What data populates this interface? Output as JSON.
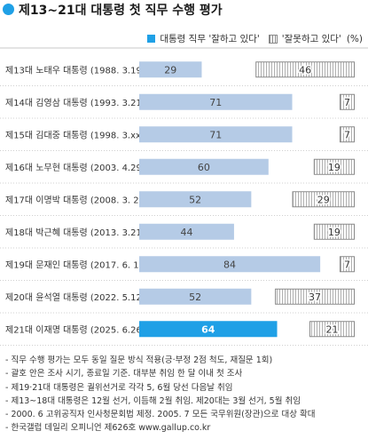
{
  "title": "제13~21대 대통령 첫 직무 수행 평가",
  "legend": {
    "approve": "대통령 직무 '잘하고 있다'",
    "disapprove": "'잘못하고 있다'",
    "unit": "(%)"
  },
  "colors": {
    "approve": "#b5cbe6",
    "approve_highlight": "#1fa0e6",
    "disapprove_border": "#888888"
  },
  "chart_data": {
    "type": "bar",
    "orientation": "horizontal",
    "categories": [
      "제13대 노태우 대통령 (1988. 3.19)",
      "제14대 김영삼 대통령 (1993. 3.21)",
      "제15대 김대중 대통령 (1998. 3.xx)",
      "제16대 노무현 대통령 (2003. 4.29)",
      "제17대 이명박 대통령 (2008. 3. 2)",
      "제18대 박근혜 대통령 (2013. 3.21)",
      "제19대 문재인 대통령 (2017. 6. 1)",
      "제20대 윤석열 대통령 (2022. 5.12)",
      "제21대 이재명 대통령 (2025. 6.26)"
    ],
    "series": [
      {
        "name": "대통령 직무 '잘하고 있다'",
        "values": [
          29,
          71,
          71,
          60,
          52,
          44,
          84,
          52,
          64
        ]
      },
      {
        "name": "'잘못하고 있다'",
        "values": [
          46,
          7,
          7,
          19,
          29,
          19,
          7,
          37,
          21
        ]
      }
    ],
    "highlight_index": 8,
    "xlim": [
      0,
      100
    ],
    "grid": false
  },
  "notes": [
    "- 직무 수행 평가는 모두 동일 질문 방식 적용(긍·부정 2점 척도, 재질문 1회)",
    "- 괄호 안은 조사 시기, 종료일 기준. 대부분 취임 한 달 이내 첫 조사",
    "- 제19·21대 대통령은 궐위선거로 각각 5, 6월 당선 다음날 취임",
    "- 제13~18대 대통령은 12월 선거, 이듬해 2월 취임. 제20대는 3월 선거, 5월 취임",
    "- 2000. 6 고위공직자 인사청문회법 제정. 2005. 7 모든 국무위원(장관)으로 대상 확대",
    "- 한국갤럽 데일리 오피니언 제626호 www.gallup.co.kr"
  ]
}
